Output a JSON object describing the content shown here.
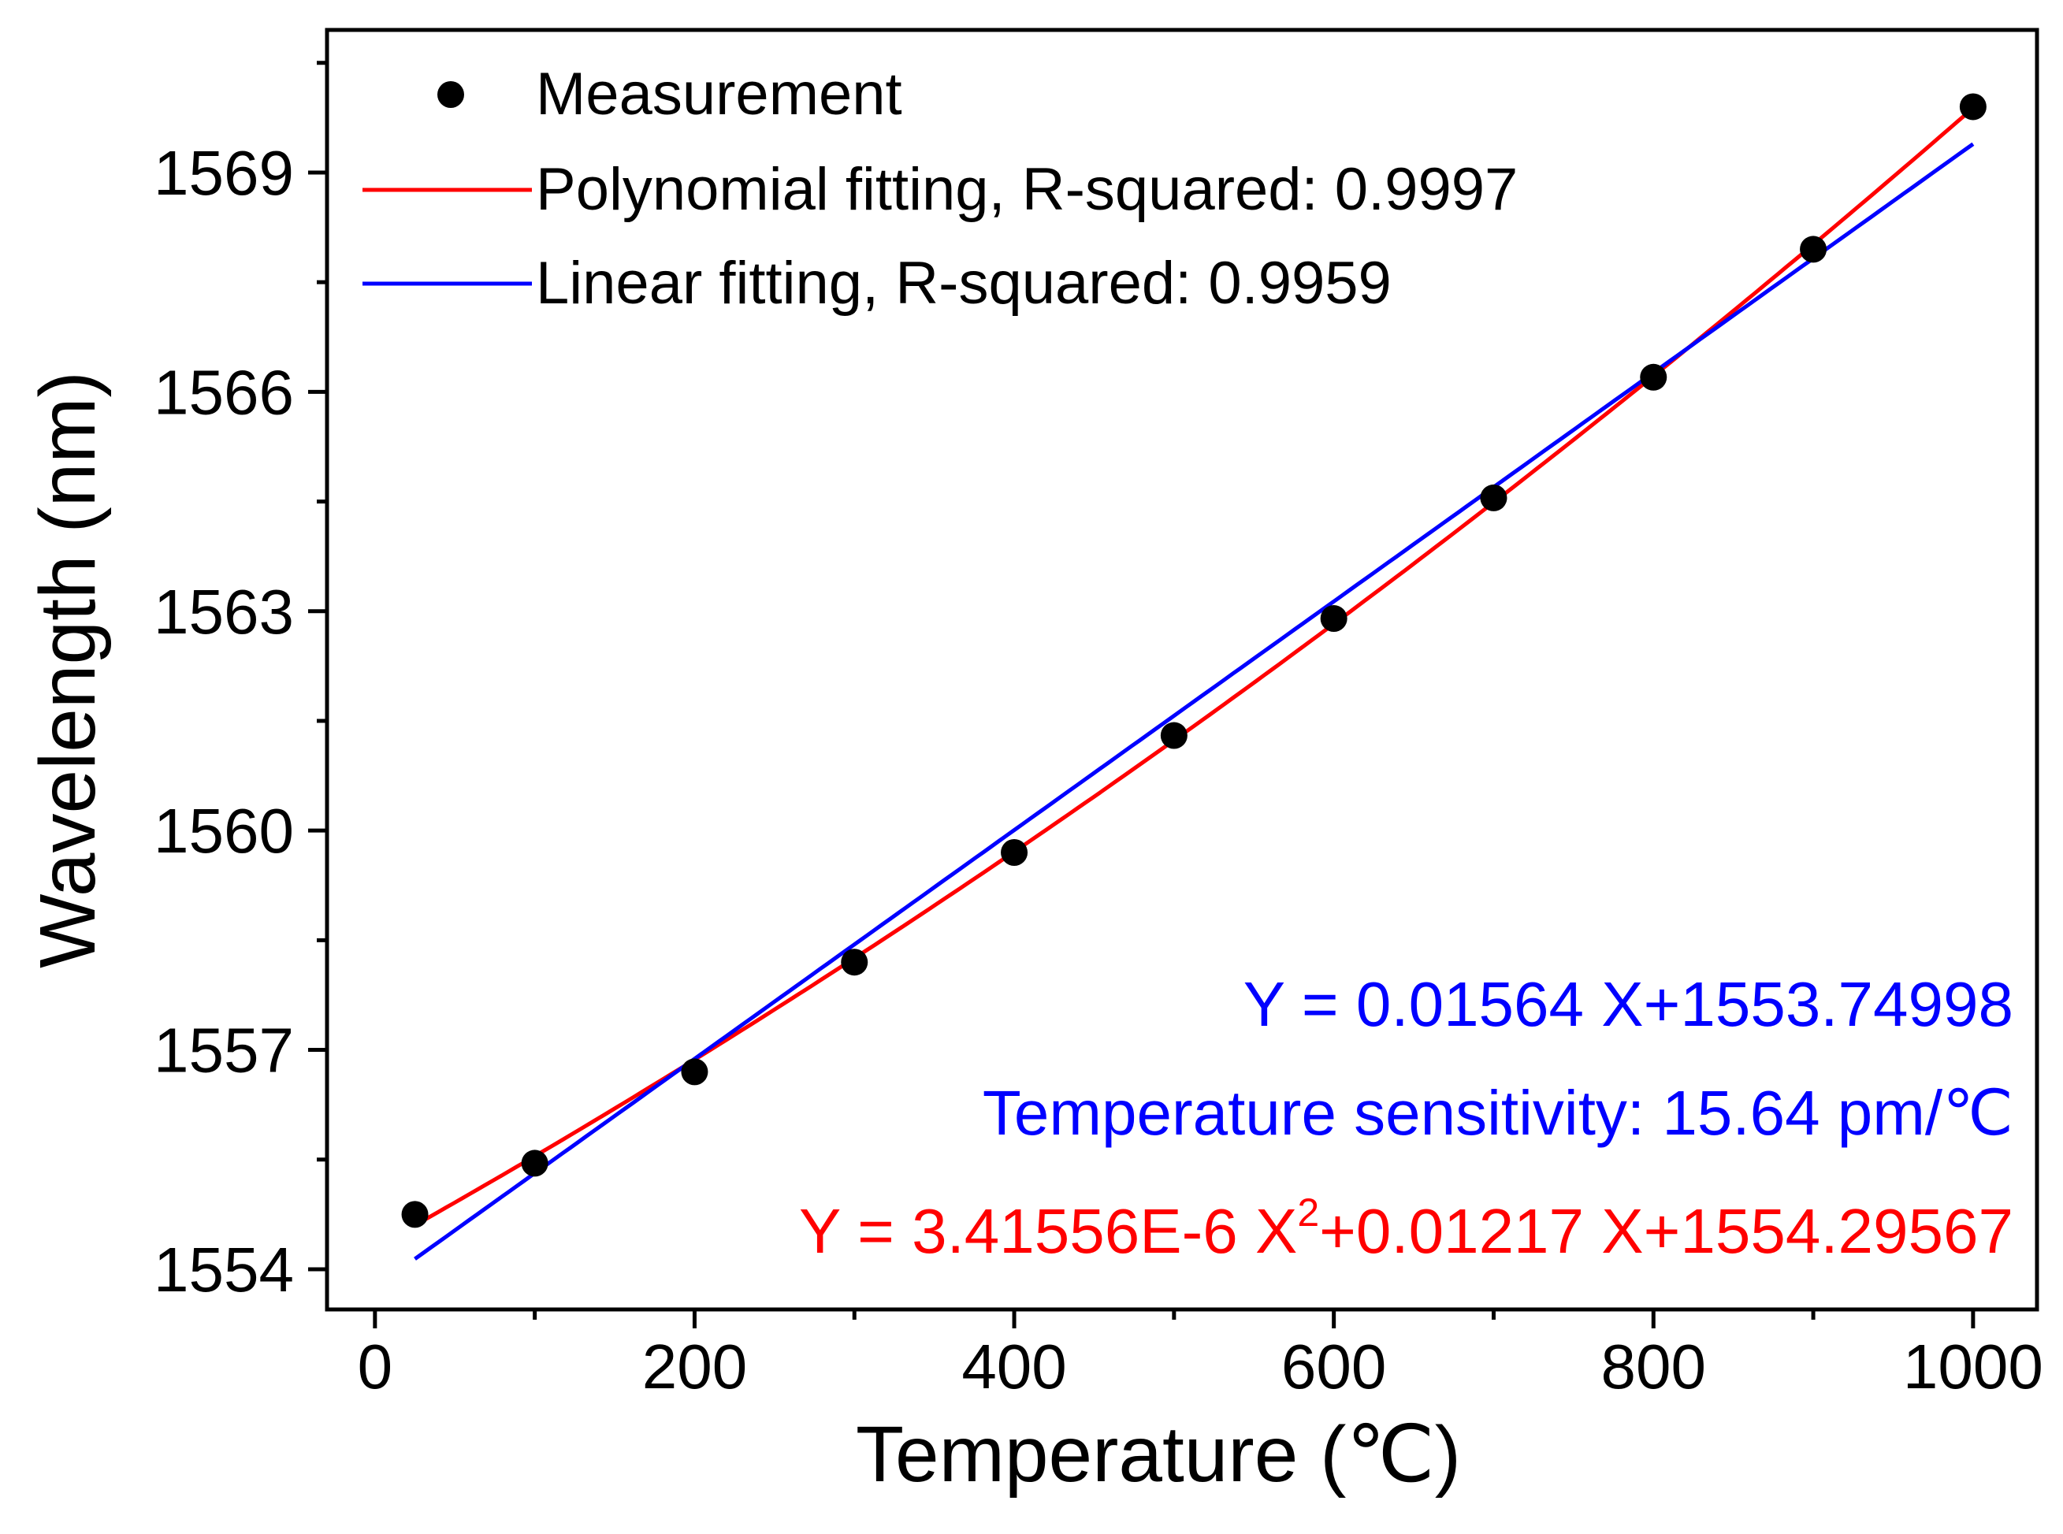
{
  "chart_data": {
    "type": "scatter",
    "title": "",
    "xlabel": "Temperature (℃)",
    "ylabel": "Wavelength (nm)",
    "xlim": [
      -30,
      1040
    ],
    "ylim": [
      1553.45,
      1570.95
    ],
    "x_ticks": [
      0,
      200,
      400,
      600,
      800,
      1000
    ],
    "x_tick_labels": [
      "0",
      "200",
      "400",
      "600",
      "800",
      "1000"
    ],
    "x_minor_ticks": [
      100,
      300,
      500,
      700,
      900
    ],
    "y_ticks": [
      1554,
      1557,
      1560,
      1563,
      1566,
      1569
    ],
    "y_tick_labels": [
      "1554",
      "1557",
      "1560",
      "1563",
      "1566",
      "1569"
    ],
    "y_minor_ticks": [
      1555.5,
      1558.5,
      1561.5,
      1564.5,
      1567.5,
      1570.5
    ],
    "series": [
      {
        "name": "Measurement",
        "kind": "scatter",
        "color": "#000000",
        "x": [
          25,
          100,
          200,
          300,
          400,
          500,
          600,
          700,
          800,
          900,
          1000
        ],
        "y": [
          1554.75,
          1555.45,
          1556.7,
          1558.2,
          1559.7,
          1561.3,
          1562.9,
          1564.55,
          1566.2,
          1567.95,
          1569.9
        ]
      },
      {
        "name": "Polynomial fitting, R-squared: 0.9997",
        "kind": "line",
        "color": "#ff0000",
        "coefficients": {
          "a2": 3.41556e-06,
          "a1": 0.01217,
          "a0": 1554.29567
        },
        "x_range": [
          25,
          1000
        ]
      },
      {
        "name": "Linear fitting, R-squared: 0.9959",
        "kind": "line",
        "color": "#0000ff",
        "coefficients": {
          "a1": 0.01564,
          "a0": 1553.74998
        },
        "x_range": [
          25,
          1000
        ]
      }
    ],
    "legend": {
      "position": "top-left",
      "entries": [
        "Measurement",
        "Polynomial fitting, R-squared: 0.9997",
        "Linear fitting, R-squared: 0.9959"
      ]
    },
    "annotations": [
      {
        "name": "linear-equation",
        "text": "Y = 0.01564 X+1553.74998",
        "color": "#0000ff"
      },
      {
        "name": "sensitivity",
        "text": "Temperature sensitivity: 15.64 pm/℃",
        "color": "#0000ff"
      }
    ],
    "poly_equation": {
      "color": "#ff0000",
      "prefix": "Y = 3.41556E-6 X",
      "superscript": "2",
      "suffix": "+0.01217 X+1554.29567"
    },
    "grid": false
  }
}
